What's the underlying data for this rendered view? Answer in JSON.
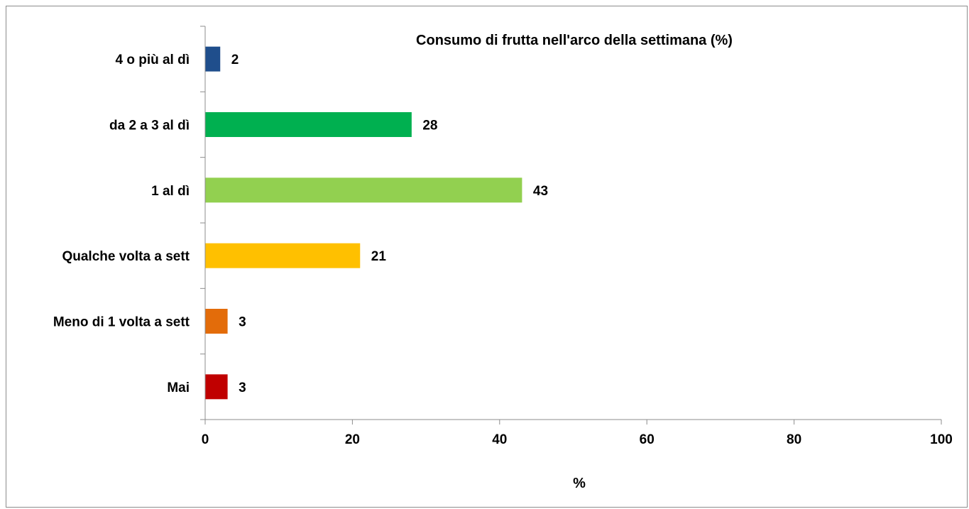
{
  "chart_data": {
    "type": "bar",
    "orientation": "horizontal",
    "title": "Consumo di frutta nell'arco della settimana (%)",
    "xlabel": "%",
    "ylabel": "",
    "xlim": [
      0,
      100
    ],
    "xticks": [
      0,
      20,
      40,
      60,
      80,
      100
    ],
    "grid": false,
    "legend": "none",
    "categories": [
      "4 o più al dì",
      "da 2 a 3 al dì",
      "1 al dì",
      "Qualche volta a sett",
      "Meno di 1 volta a sett",
      "Mai"
    ],
    "values": [
      2,
      28,
      43,
      21,
      3,
      3
    ],
    "data_labels": [
      "2",
      "28",
      "43",
      "21",
      "3",
      "3"
    ],
    "colors": [
      "#1f4e8c",
      "#00b050",
      "#92d050",
      "#ffc000",
      "#e36c0a",
      "#c00000"
    ]
  }
}
